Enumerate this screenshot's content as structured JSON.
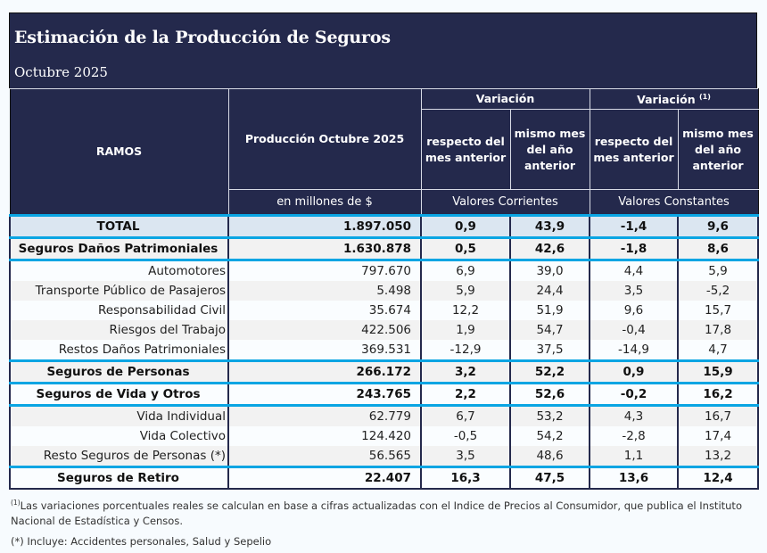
{
  "header": {
    "title": "Estimación de la Producción de Seguros",
    "subtitle": "Octubre 2025"
  },
  "columns": {
    "ramos": "RAMOS",
    "produccion": "Producción Octubre 2025",
    "variacion_corrientes": "Variación",
    "variacion_constantes": "Variación",
    "variacion_constantes_sup": "(1)",
    "mes_anterior_1": "respecto del mes anterior",
    "anio_anterior_1": "mismo mes del año anterior",
    "mes_anterior_2": "respecto del mes anterior",
    "anio_anterior_2": "mismo mes del año anterior",
    "unidad_produccion": "en millones de $",
    "unidad_corrientes": "Valores Corrientes",
    "unidad_constantes": "Valores Constantes"
  },
  "rows": [
    {
      "ramo": "TOTAL",
      "produccion": "1.897.050",
      "var_mes_corr": "0,9",
      "var_anio_corr": "43,9",
      "var_mes_const": "-1,4",
      "var_anio_const": "9,6"
    },
    {
      "ramo": "Seguros Daños Patrimoniales",
      "produccion": "1.630.878",
      "var_mes_corr": "0,5",
      "var_anio_corr": "42,6",
      "var_mes_const": "-1,8",
      "var_anio_const": "8,6"
    },
    {
      "ramo": "Automotores",
      "produccion": "797.670",
      "var_mes_corr": "6,9",
      "var_anio_corr": "39,0",
      "var_mes_const": "4,4",
      "var_anio_const": "5,9"
    },
    {
      "ramo": "Transporte Público de Pasajeros",
      "produccion": "5.498",
      "var_mes_corr": "5,9",
      "var_anio_corr": "24,4",
      "var_mes_const": "3,5",
      "var_anio_const": "-5,2"
    },
    {
      "ramo": "Responsabilidad Civil",
      "produccion": "35.674",
      "var_mes_corr": "12,2",
      "var_anio_corr": "51,9",
      "var_mes_const": "9,6",
      "var_anio_const": "15,7"
    },
    {
      "ramo": "Riesgos del Trabajo",
      "produccion": "422.506",
      "var_mes_corr": "1,9",
      "var_anio_corr": "54,7",
      "var_mes_const": "-0,4",
      "var_anio_const": "17,8"
    },
    {
      "ramo": "Restos Daños Patrimoniales",
      "produccion": "369.531",
      "var_mes_corr": "-12,9",
      "var_anio_corr": "37,5",
      "var_mes_const": "-14,9",
      "var_anio_const": "4,7"
    },
    {
      "ramo": "Seguros de Personas",
      "produccion": "266.172",
      "var_mes_corr": "3,2",
      "var_anio_corr": "52,2",
      "var_mes_const": "0,9",
      "var_anio_const": "15,9"
    },
    {
      "ramo": "Seguros de Vida y Otros",
      "produccion": "243.765",
      "var_mes_corr": "2,2",
      "var_anio_corr": "52,6",
      "var_mes_const": "-0,2",
      "var_anio_const": "16,2"
    },
    {
      "ramo": "Vida Individual",
      "produccion": "62.779",
      "var_mes_corr": "6,7",
      "var_anio_corr": "53,2",
      "var_mes_const": "4,3",
      "var_anio_const": "16,7"
    },
    {
      "ramo": "Vida Colectivo",
      "produccion": "124.420",
      "var_mes_corr": "-0,5",
      "var_anio_corr": "54,2",
      "var_mes_const": "-2,8",
      "var_anio_const": "17,4"
    },
    {
      "ramo": "Resto Seguros de Personas (*)",
      "produccion": "56.565",
      "var_mes_corr": "3,5",
      "var_anio_corr": "48,6",
      "var_mes_const": "1,1",
      "var_anio_const": "13,2"
    },
    {
      "ramo": "Seguros de Retiro",
      "produccion": "22.407",
      "var_mes_corr": "16,3",
      "var_anio_corr": "47,5",
      "var_mes_const": "13,6",
      "var_anio_const": "12,4"
    }
  ],
  "notes": {
    "note1_sup": "(1)",
    "note1": "Las variaciones porcentuales reales se calculan en base a cifras actualizadas con  el Indice de Precios al Consumidor, que publica el Instituto Nacional de Estadística y  Censos.",
    "note2": "(*) Incluye: Accidentes personales, Salud y Sepelio"
  },
  "colors": {
    "header_bg": "#24294c",
    "separator": "#0aa5e3",
    "total_bg": "#dbe6f1"
  }
}
